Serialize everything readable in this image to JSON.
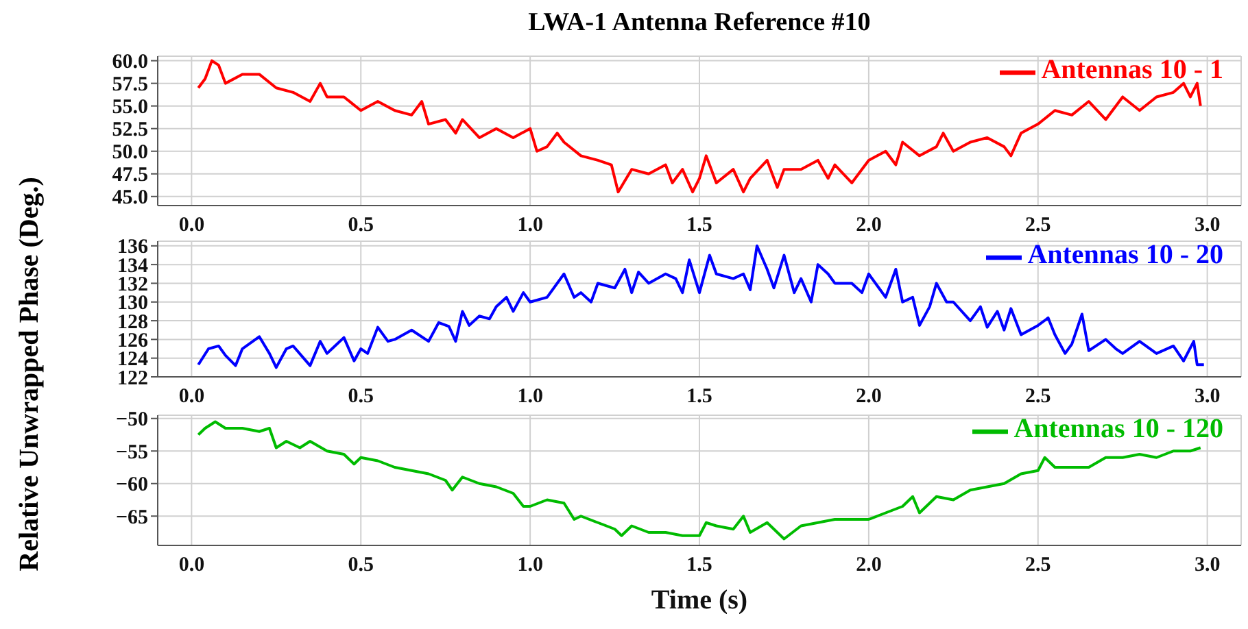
{
  "chart_data": [
    {
      "type": "line",
      "title": "LWA-1 Antenna Reference #10",
      "x": [
        0.02,
        0.04,
        0.06,
        0.08,
        0.1,
        0.15,
        0.2,
        0.25,
        0.3,
        0.35,
        0.38,
        0.4,
        0.45,
        0.5,
        0.55,
        0.6,
        0.65,
        0.68,
        0.7,
        0.75,
        0.78,
        0.8,
        0.85,
        0.9,
        0.95,
        1.0,
        1.02,
        1.05,
        1.08,
        1.1,
        1.15,
        1.2,
        1.24,
        1.26,
        1.3,
        1.35,
        1.4,
        1.42,
        1.45,
        1.48,
        1.5,
        1.52,
        1.55,
        1.6,
        1.63,
        1.65,
        1.7,
        1.73,
        1.75,
        1.8,
        1.85,
        1.88,
        1.9,
        1.95,
        2.0,
        2.05,
        2.08,
        2.1,
        2.15,
        2.2,
        2.22,
        2.25,
        2.3,
        2.35,
        2.4,
        2.42,
        2.45,
        2.5,
        2.55,
        2.6,
        2.65,
        2.7,
        2.75,
        2.8,
        2.85,
        2.9,
        2.93,
        2.95,
        2.97,
        2.98
      ],
      "series": [
        {
          "name": "Antennas 10 - 1",
          "color": "#ff0000",
          "values": [
            57,
            58,
            60,
            59.5,
            57.5,
            58.5,
            58.5,
            57,
            56.5,
            55.5,
            57.5,
            56,
            56,
            54.5,
            55.5,
            54.5,
            54,
            55.5,
            53,
            53.5,
            52,
            53.5,
            51.5,
            52.5,
            51.5,
            52.5,
            50,
            50.5,
            52,
            51,
            49.5,
            49,
            48.5,
            45.5,
            48,
            47.5,
            48.5,
            46.5,
            48,
            45.5,
            47,
            49.5,
            46.5,
            48,
            45.5,
            47,
            49,
            46,
            48,
            48,
            49,
            47,
            48.5,
            46.5,
            49,
            50,
            48.5,
            51,
            49.5,
            50.5,
            52,
            50,
            51,
            51.5,
            50.5,
            49.5,
            52,
            53,
            54.5,
            54,
            55.5,
            53.5,
            56,
            54.5,
            56,
            56.5,
            57.5,
            56,
            57.5,
            55
          ]
        }
      ],
      "xlim": [
        -0.1,
        3.1
      ],
      "xticks": [
        {
          "value": 0,
          "label": "0.0"
        },
        {
          "value": 0.5,
          "label": "0.5"
        },
        {
          "value": 1,
          "label": "1.0"
        },
        {
          "value": 1.5,
          "label": "1.5"
        },
        {
          "value": 2,
          "label": "2.0"
        },
        {
          "value": 2.5,
          "label": "2.5"
        },
        {
          "value": 3,
          "label": "3.0"
        }
      ],
      "ylim": [
        44,
        60.5
      ],
      "yticks": [
        {
          "value": 45,
          "label": "45.0"
        },
        47.5,
        {
          "value": 50,
          "label": "50.0"
        },
        52.5,
        {
          "value": 55,
          "label": "55.0"
        },
        57.5,
        {
          "value": 60,
          "label": "60.0"
        }
      ],
      "grid": true,
      "legend": "top right",
      "marker": "none",
      "line_style": "solid"
    },
    {
      "type": "line",
      "ylabel": "Relative Unwrapped Phase (Deg.)",
      "x": [
        0.02,
        0.05,
        0.08,
        0.1,
        0.13,
        0.15,
        0.2,
        0.23,
        0.25,
        0.28,
        0.3,
        0.35,
        0.38,
        0.4,
        0.45,
        0.48,
        0.5,
        0.52,
        0.55,
        0.58,
        0.6,
        0.65,
        0.7,
        0.73,
        0.76,
        0.78,
        0.8,
        0.82,
        0.85,
        0.88,
        0.9,
        0.93,
        0.95,
        0.98,
        1.0,
        1.05,
        1.1,
        1.13,
        1.15,
        1.18,
        1.2,
        1.25,
        1.28,
        1.3,
        1.32,
        1.35,
        1.4,
        1.43,
        1.45,
        1.47,
        1.5,
        1.53,
        1.55,
        1.6,
        1.63,
        1.65,
        1.67,
        1.7,
        1.72,
        1.75,
        1.78,
        1.8,
        1.83,
        1.85,
        1.88,
        1.9,
        1.95,
        1.98,
        2.0,
        2.03,
        2.05,
        2.08,
        2.1,
        2.13,
        2.15,
        2.18,
        2.2,
        2.23,
        2.25,
        2.3,
        2.33,
        2.35,
        2.38,
        2.4,
        2.42,
        2.45,
        2.5,
        2.53,
        2.55,
        2.58,
        2.6,
        2.63,
        2.65,
        2.7,
        2.73,
        2.75,
        2.8,
        2.85,
        2.9,
        2.93,
        2.96,
        2.97,
        2.99
      ],
      "series": [
        {
          "name": "Antennas 10 - 20",
          "color": "#0000ff",
          "values": [
            123.3,
            125,
            125.3,
            124.3,
            123.2,
            125,
            126.3,
            124.5,
            123,
            125,
            125.3,
            123.2,
            125.8,
            124.5,
            126.2,
            123.7,
            125,
            124.5,
            127.3,
            125.8,
            126,
            127,
            125.8,
            127.8,
            127.4,
            125.8,
            129,
            127.5,
            128.5,
            128.2,
            129.5,
            130.5,
            129,
            131,
            130,
            130.5,
            133,
            130.5,
            131,
            130,
            132,
            131.5,
            133.5,
            131,
            133.2,
            132,
            133,
            132.5,
            131,
            134.5,
            131,
            135,
            133,
            132.5,
            133,
            131.3,
            136,
            133.5,
            131.5,
            135,
            131,
            132.5,
            130,
            134,
            133,
            132,
            132,
            131,
            133,
            131.5,
            130.5,
            133.5,
            130,
            130.5,
            127.5,
            129.5,
            132,
            130,
            130,
            128,
            129.5,
            127.3,
            129,
            127,
            129.3,
            126.5,
            127.5,
            128.3,
            126.5,
            124.5,
            125.5,
            128.7,
            124.8,
            126,
            125,
            124.5,
            125.8,
            124.5,
            125.3,
            123.7,
            125.8,
            123.3,
            123.3
          ]
        }
      ],
      "xlim": [
        -0.1,
        3.1
      ],
      "xticks": [
        {
          "value": 0,
          "label": "0.0"
        },
        {
          "value": 0.5,
          "label": "0.5"
        },
        {
          "value": 1,
          "label": "1.0"
        },
        {
          "value": 1.5,
          "label": "1.5"
        },
        {
          "value": 2,
          "label": "2.0"
        },
        {
          "value": 2.5,
          "label": "2.5"
        },
        {
          "value": 3,
          "label": "3.0"
        }
      ],
      "ylim": [
        122,
        136.5
      ],
      "yticks": [
        122,
        124,
        126,
        128,
        130,
        132,
        134,
        136
      ],
      "grid": true,
      "legend": "top right",
      "marker": "none",
      "line_style": "solid"
    },
    {
      "type": "line",
      "xlabel": "Time (s)",
      "x": [
        0.02,
        0.04,
        0.07,
        0.1,
        0.15,
        0.2,
        0.23,
        0.25,
        0.28,
        0.32,
        0.35,
        0.4,
        0.45,
        0.48,
        0.5,
        0.55,
        0.6,
        0.65,
        0.7,
        0.75,
        0.77,
        0.8,
        0.85,
        0.9,
        0.95,
        0.98,
        1.0,
        1.05,
        1.1,
        1.13,
        1.15,
        1.2,
        1.25,
        1.27,
        1.3,
        1.35,
        1.4,
        1.45,
        1.5,
        1.52,
        1.55,
        1.6,
        1.63,
        1.65,
        1.7,
        1.75,
        1.8,
        1.85,
        1.9,
        1.95,
        2.0,
        2.05,
        2.1,
        2.13,
        2.15,
        2.2,
        2.25,
        2.3,
        2.35,
        2.4,
        2.45,
        2.5,
        2.52,
        2.55,
        2.6,
        2.65,
        2.7,
        2.75,
        2.8,
        2.85,
        2.9,
        2.95,
        2.98
      ],
      "series": [
        {
          "name": "Antennas 10 - 120",
          "color": "#00bb00",
          "values": [
            -52.5,
            -51.5,
            -50.5,
            -51.5,
            -51.5,
            -52,
            -51.5,
            -54.5,
            -53.5,
            -54.5,
            -53.5,
            -55,
            -55.5,
            -57,
            -56,
            -56.5,
            -57.5,
            -58,
            -58.5,
            -59.5,
            -61,
            -59,
            -60,
            -60.5,
            -61.5,
            -63.5,
            -63.5,
            -62.5,
            -63,
            -65.5,
            -65,
            -66,
            -67,
            -68,
            -66.5,
            -67.5,
            -67.5,
            -68,
            -68,
            -66,
            -66.5,
            -67,
            -65,
            -67.5,
            -66,
            -68.5,
            -66.5,
            -66,
            -65.5,
            -65.5,
            -65.5,
            -64.5,
            -63.5,
            -62,
            -64.5,
            -62,
            -62.5,
            -61,
            -60.5,
            -60,
            -58.5,
            -58,
            -56,
            -57.5,
            -57.5,
            -57.5,
            -56,
            -56,
            -55.5,
            -56,
            -55,
            -55,
            -54.5
          ]
        }
      ],
      "xlim": [
        -0.1,
        3.1
      ],
      "xticks": [
        {
          "value": 0,
          "label": "0.0"
        },
        {
          "value": 0.5,
          "label": "0.5"
        },
        {
          "value": 1,
          "label": "1.0"
        },
        {
          "value": 1.5,
          "label": "1.5"
        },
        {
          "value": 2,
          "label": "2.0"
        },
        {
          "value": 2.5,
          "label": "2.5"
        },
        {
          "value": 3,
          "label": "3.0"
        }
      ],
      "ylim": [
        -69.5,
        -49.5
      ],
      "yticks": [
        {
          "value": -50,
          "label": "−50"
        },
        {
          "value": -55,
          "label": "−55"
        },
        {
          "value": -60,
          "label": "−60"
        },
        {
          "value": -65,
          "label": "−65"
        }
      ],
      "grid": true,
      "legend": "top right",
      "marker": "none",
      "line_style": "solid"
    }
  ]
}
